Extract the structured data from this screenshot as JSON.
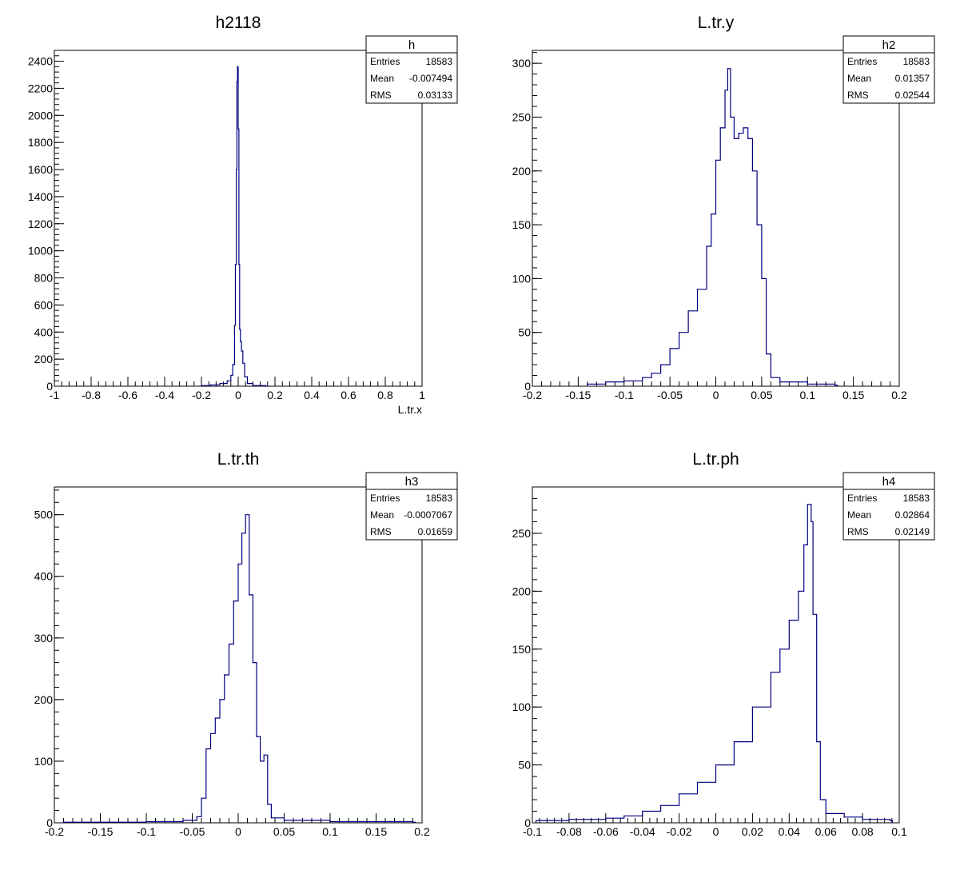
{
  "colors": {
    "line": "#000080",
    "frame": "#000000",
    "background": "#ffffff"
  },
  "chart_data": [
    {
      "type": "histogram",
      "title": "h2118",
      "xlabel": "L.tr.x",
      "ylabel": "",
      "xlim": [
        -1,
        1
      ],
      "ylim": [
        0,
        2480
      ],
      "xticks": [
        -1,
        -0.8,
        -0.6,
        -0.4,
        -0.2,
        0,
        0.2,
        0.4,
        0.6,
        0.8,
        1
      ],
      "xtick_labels": [
        "-1",
        "-0.8",
        "-0.6",
        "-0.4",
        "-0.2",
        "0",
        "0.2",
        "0.4",
        "0.6",
        "0.8",
        "1"
      ],
      "yticks": [
        0,
        200,
        400,
        600,
        800,
        1000,
        1200,
        1400,
        1600,
        1800,
        2000,
        2200,
        2400
      ],
      "ytick_labels": [
        "0",
        "200",
        "400",
        "600",
        "800",
        "1000",
        "1200",
        "1400",
        "1600",
        "1800",
        "2000",
        "2200",
        "2400"
      ],
      "stats": {
        "name": "h",
        "rows": [
          [
            "Entries",
            "18583"
          ],
          [
            "Mean",
            "-0.007494"
          ],
          [
            "RMS",
            "0.03133"
          ]
        ]
      },
      "series": [
        {
          "x": [
            -0.2,
            -0.15,
            -0.1,
            -0.06,
            -0.04,
            -0.03,
            -0.02,
            -0.015,
            -0.01,
            -0.007,
            -0.004,
            0.0,
            0.004,
            0.008,
            0.012,
            0.018,
            0.025,
            0.035,
            0.05,
            0.08,
            0.15
          ],
          "y": [
            5,
            10,
            20,
            40,
            80,
            160,
            450,
            900,
            1600,
            2250,
            2360,
            1900,
            900,
            420,
            330,
            260,
            170,
            70,
            20,
            5,
            0
          ]
        }
      ]
    },
    {
      "type": "histogram",
      "title": "L.tr.y",
      "xlabel": "",
      "ylabel": "",
      "xlim": [
        -0.2,
        0.2
      ],
      "ylim": [
        0,
        312
      ],
      "xticks": [
        -0.2,
        -0.15,
        -0.1,
        -0.05,
        0,
        0.05,
        0.1,
        0.15,
        0.2
      ],
      "xtick_labels": [
        "-0.2",
        "-0.15",
        "-0.1",
        "-0.05",
        "0",
        "0.05",
        "0.1",
        "0.15",
        "0.2"
      ],
      "yticks": [
        0,
        50,
        100,
        150,
        200,
        250,
        300
      ],
      "ytick_labels": [
        "0",
        "50",
        "100",
        "150",
        "200",
        "250",
        "300"
      ],
      "stats": {
        "name": "h2",
        "rows": [
          [
            "Entries",
            "18583"
          ],
          [
            "Mean",
            "0.01357"
          ],
          [
            "RMS",
            "0.02544"
          ]
        ]
      },
      "series": [
        {
          "x": [
            -0.14,
            -0.12,
            -0.1,
            -0.08,
            -0.07,
            -0.06,
            -0.05,
            -0.04,
            -0.03,
            -0.02,
            -0.01,
            -0.005,
            0.0,
            0.005,
            0.01,
            0.013,
            0.016,
            0.02,
            0.025,
            0.03,
            0.035,
            0.04,
            0.045,
            0.05,
            0.055,
            0.06,
            0.07,
            0.1,
            0.13
          ],
          "y": [
            2,
            4,
            5,
            8,
            12,
            20,
            35,
            50,
            70,
            90,
            130,
            160,
            210,
            240,
            275,
            295,
            250,
            230,
            235,
            240,
            230,
            200,
            150,
            100,
            30,
            8,
            4,
            2,
            1
          ]
        }
      ]
    },
    {
      "type": "histogram",
      "title": "L.tr.th",
      "xlabel": "",
      "ylabel": "",
      "xlim": [
        -0.2,
        0.2
      ],
      "ylim": [
        0,
        545
      ],
      "xticks": [
        -0.2,
        -0.15,
        -0.1,
        -0.05,
        0,
        0.05,
        0.1,
        0.15,
        0.2
      ],
      "xtick_labels": [
        "-0.2",
        "-0.15",
        "-0.1",
        "-0.05",
        "0",
        "0.05",
        "0.1",
        "0.15",
        "0.2"
      ],
      "yticks": [
        0,
        100,
        200,
        300,
        400,
        500
      ],
      "ytick_labels": [
        "0",
        "100",
        "200",
        "300",
        "400",
        "500"
      ],
      "stats": {
        "name": "h3",
        "rows": [
          [
            "Entries",
            "18583"
          ],
          [
            "Mean",
            "-0.0007067"
          ],
          [
            "RMS",
            "0.01659"
          ]
        ]
      },
      "series": [
        {
          "x": [
            -0.19,
            -0.1,
            -0.06,
            -0.045,
            -0.04,
            -0.035,
            -0.03,
            -0.025,
            -0.02,
            -0.015,
            -0.01,
            -0.005,
            0.0,
            0.004,
            0.008,
            0.012,
            0.016,
            0.02,
            0.024,
            0.028,
            0.032,
            0.036,
            0.05,
            0.1,
            0.19
          ],
          "y": [
            1,
            2,
            4,
            10,
            40,
            120,
            145,
            170,
            200,
            240,
            290,
            360,
            420,
            470,
            500,
            370,
            260,
            140,
            100,
            110,
            30,
            8,
            4,
            2,
            1
          ]
        }
      ]
    },
    {
      "type": "histogram",
      "title": "L.tr.ph",
      "xlabel": "",
      "ylabel": "",
      "xlim": [
        -0.1,
        0.1
      ],
      "ylim": [
        0,
        290
      ],
      "xticks": [
        -0.1,
        -0.08,
        -0.06,
        -0.04,
        -0.02,
        0,
        0.02,
        0.04,
        0.06,
        0.08,
        0.1
      ],
      "xtick_labels": [
        "-0.1",
        "-0.08",
        "-0.06",
        "-0.04",
        "-0.02",
        "0",
        "0.02",
        "0.04",
        "0.06",
        "0.08",
        "0.1"
      ],
      "yticks": [
        0,
        50,
        100,
        150,
        200,
        250
      ],
      "ytick_labels": [
        "0",
        "50",
        "100",
        "150",
        "200",
        "250"
      ],
      "stats": {
        "name": "h4",
        "rows": [
          [
            "Entries",
            "18583"
          ],
          [
            "Mean",
            "0.02864"
          ],
          [
            "RMS",
            "0.02149"
          ]
        ]
      },
      "series": [
        {
          "x": [
            -0.098,
            -0.08,
            -0.06,
            -0.05,
            -0.04,
            -0.03,
            -0.02,
            -0.01,
            0.0,
            0.01,
            0.02,
            0.03,
            0.035,
            0.04,
            0.045,
            0.048,
            0.05,
            0.052,
            0.053,
            0.055,
            0.057,
            0.06,
            0.07,
            0.08,
            0.095
          ],
          "y": [
            2,
            3,
            4,
            6,
            10,
            15,
            25,
            35,
            50,
            70,
            100,
            130,
            150,
            175,
            200,
            240,
            275,
            260,
            180,
            70,
            20,
            8,
            5,
            3,
            2
          ]
        }
      ]
    }
  ]
}
